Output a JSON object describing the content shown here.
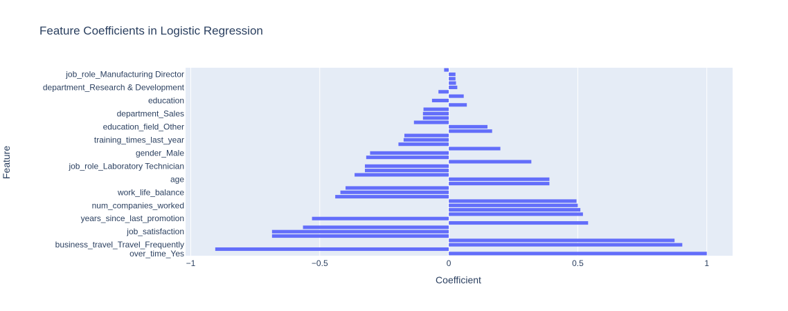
{
  "chart_data": {
    "type": "bar",
    "orientation": "horizontal",
    "title": "Feature Coefficients in Logistic Regression",
    "xlabel": "Coefficient",
    "ylabel": "Feature",
    "xlim": [
      -1.02,
      1.1
    ],
    "x_ticks": [
      -1,
      -0.5,
      0,
      0.5,
      1
    ],
    "x_tick_labels": [
      "−1",
      "−0.5",
      "0",
      "0.5",
      "1"
    ],
    "grid": true,
    "bar_color": "#636efa",
    "plot_bg": "#e5ecf6",
    "y_tick_labels": [
      {
        "index": 0,
        "text": "over_time_Yes"
      },
      {
        "index": 2,
        "text": "business_travel_Travel_Frequently"
      },
      {
        "index": 5,
        "text": "job_satisfaction"
      },
      {
        "index": 8,
        "text": "years_since_last_promotion"
      },
      {
        "index": 11,
        "text": "num_companies_worked"
      },
      {
        "index": 14,
        "text": "work_life_balance"
      },
      {
        "index": 17,
        "text": "age"
      },
      {
        "index": 20,
        "text": "job_role_Laboratory Technician"
      },
      {
        "index": 23,
        "text": "gender_Male"
      },
      {
        "index": 26,
        "text": "training_times_last_year"
      },
      {
        "index": 29,
        "text": "education_field_Other"
      },
      {
        "index": 32,
        "text": "department_Sales"
      },
      {
        "index": 35,
        "text": "education"
      },
      {
        "index": 38,
        "text": "department_Research & Development"
      },
      {
        "index": 41,
        "text": "job_role_Manufacturing Director"
      }
    ],
    "values": [
      1.0,
      -0.905,
      0.905,
      0.875,
      -0.685,
      -0.685,
      -0.565,
      0.54,
      -0.53,
      0.52,
      0.51,
      0.5,
      0.495,
      -0.44,
      -0.42,
      -0.4,
      0.39,
      0.39,
      -0.365,
      -0.325,
      -0.325,
      0.32,
      -0.32,
      -0.305,
      0.2,
      -0.195,
      -0.175,
      -0.172,
      0.168,
      0.15,
      -0.135,
      -0.1,
      -0.1,
      -0.098,
      0.07,
      -0.065,
      0.058,
      -0.04,
      0.033,
      0.028,
      0.026,
      0.026,
      -0.018
    ]
  }
}
